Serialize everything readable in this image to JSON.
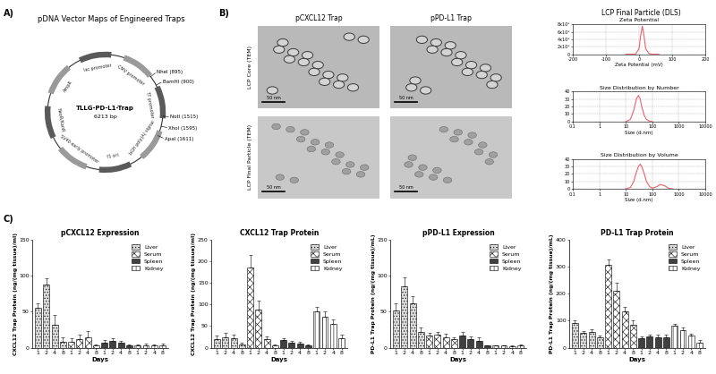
{
  "panels": {
    "labels": [
      "A)",
      "B)",
      "C)"
    ]
  },
  "plasmid_map": {
    "title": "pDNA Vector Maps of Engineered Traps",
    "name": "TLLG-PD-L1-Trap",
    "length": "6213 bp",
    "features": [
      "lac promoter",
      "CMV promoter",
      "T7 promoter",
      "bGH poly(A) signal",
      "f1 ori",
      "SV40 early promoter",
      "NeoR/KanR",
      "AmpR"
    ],
    "sites": [
      "NheI (895)",
      "BamHI (900)",
      "NotI (1515)",
      "XhoI (1595)",
      "ApaI (1611)"
    ]
  },
  "tem": {
    "columns": [
      "pCXCL12 Trap",
      "pPD-L1 Trap"
    ],
    "rows": [
      "LCP Core (TEM)",
      "LCP Final Particle (TEM)"
    ],
    "scale_bar": "50 nm"
  },
  "dls_title": "LCP Final Particle (DLS)",
  "chart_data": [
    {
      "type": "line",
      "title": "Zeta Potential",
      "xlabel": "Zeta Potential (mV)",
      "x": [
        -40,
        -20,
        -10,
        0,
        5,
        10,
        15,
        20,
        30,
        40,
        60
      ],
      "values": [
        0,
        0,
        10000,
        150000,
        500000,
        750000,
        500000,
        150000,
        20000,
        0,
        0
      ],
      "color": "#e8626b",
      "xlim": [
        -200,
        200
      ],
      "xticks": [
        -200,
        -100,
        0,
        100,
        200
      ],
      "ylim": [
        0,
        800000
      ],
      "yticks": [
        0,
        {
          "value": 200000,
          "label": "2x10⁵"
        },
        {
          "value": 400000,
          "label": "4x10⁵"
        },
        {
          "value": 600000,
          "label": "6x10⁵"
        },
        {
          "value": 800000,
          "label": "8x10⁵"
        }
      ],
      "grid": true
    },
    {
      "type": "line",
      "title": "Size Distribution by Number",
      "xlabel": "Size (d.nm)",
      "x": [
        10,
        15,
        20,
        25,
        30,
        35,
        40,
        50,
        60,
        80,
        100
      ],
      "values": [
        0,
        3,
        15,
        30,
        35,
        30,
        20,
        8,
        3,
        0.5,
        0
      ],
      "color": "#e8626b",
      "log": "x",
      "xlim": [
        0.1,
        10000
      ],
      "xticks": [
        0.1,
        1,
        10,
        100,
        1000,
        10000
      ],
      "ylim": [
        0,
        40
      ],
      "yticks": [
        0,
        10,
        20,
        30,
        40
      ],
      "grid": true
    },
    {
      "type": "line",
      "title": "Size Distribution by Volume",
      "xlabel": "Size (d.nm)",
      "x": [
        10,
        15,
        20,
        25,
        30,
        35,
        40,
        50,
        60,
        80,
        100,
        150,
        200,
        300,
        400,
        600
      ],
      "values": [
        0,
        2,
        10,
        22,
        30,
        33,
        30,
        20,
        10,
        3,
        1,
        3,
        6,
        4,
        1,
        0
      ],
      "color": "#e8626b",
      "log": "x",
      "xlim": [
        0.1,
        10000
      ],
      "xticks": [
        0.1,
        1,
        10,
        100,
        1000,
        10000
      ],
      "ylim": [
        0,
        40
      ],
      "yticks": [
        0,
        10,
        20,
        30,
        40
      ],
      "grid": true
    },
    {
      "type": "bar",
      "title": "pCXCL12 Expression",
      "xlabel": "Days",
      "ylabel": "CXCL12 Trap Protein (ng/(mg tissue)/ml)",
      "categories": [
        "1",
        "2",
        "4",
        "8",
        "1",
        "2",
        "4",
        "8",
        "1",
        "2",
        "4",
        "8",
        "1",
        "2",
        "4",
        "8"
      ],
      "series": [
        {
          "name": "Liver",
          "color": "#d9d9d9",
          "values": [
            55,
            88,
            32,
            8,
            null,
            null,
            null,
            null,
            null,
            null,
            null,
            null,
            null,
            null,
            null,
            null
          ],
          "errors": [
            6,
            8,
            14,
            6,
            null,
            null,
            null,
            null,
            null,
            null,
            null,
            null,
            null,
            null,
            null,
            null
          ]
        },
        {
          "name": "Serum",
          "color": "#ffffff",
          "values": [
            null,
            null,
            null,
            null,
            8,
            12,
            15,
            3,
            null,
            null,
            null,
            null,
            null,
            null,
            null,
            null
          ],
          "errors": [
            null,
            null,
            null,
            null,
            5,
            6,
            8,
            2,
            null,
            null,
            null,
            null,
            null,
            null,
            null,
            null
          ]
        },
        {
          "name": "Spleen",
          "color": "#404040",
          "values": [
            null,
            null,
            null,
            null,
            null,
            null,
            null,
            null,
            7,
            9,
            7,
            3,
            null,
            null,
            null,
            null
          ],
          "errors": [
            null,
            null,
            null,
            null,
            null,
            null,
            null,
            null,
            4,
            4,
            3,
            2,
            null,
            null,
            null,
            null
          ]
        },
        {
          "name": "Kidney",
          "color": "#ffffff",
          "values": [
            null,
            null,
            null,
            null,
            null,
            null,
            null,
            null,
            null,
            null,
            null,
            null,
            3,
            4,
            3,
            4
          ],
          "errors": [
            null,
            null,
            null,
            null,
            null,
            null,
            null,
            null,
            null,
            null,
            null,
            null,
            2,
            2,
            2,
            2
          ]
        }
      ],
      "ylim": [
        0,
        150
      ],
      "yticks": [
        0,
        50,
        100,
        150
      ],
      "legend": "upper right"
    },
    {
      "type": "bar",
      "title": "CXCL12 Trap Protein",
      "xlabel": "Days",
      "ylabel": "CXCL12 Trap Protein (ng/(mg tissue)/ml)",
      "categories": [
        "1",
        "2",
        "4",
        "8",
        "1",
        "2",
        "4",
        "8",
        "1",
        "2",
        "4",
        "8",
        "1",
        "2",
        "4",
        "8"
      ],
      "series": [
        {
          "name": "Liver",
          "color": "#d9d9d9",
          "values": [
            20,
            25,
            22,
            8,
            null,
            null,
            null,
            null,
            null,
            null,
            null,
            null,
            null,
            null,
            null,
            null
          ],
          "errors": [
            8,
            10,
            8,
            4,
            null,
            null,
            null,
            null,
            null,
            null,
            null,
            null,
            null,
            null,
            null,
            null
          ]
        },
        {
          "name": "Serum",
          "color": "#ffffff",
          "values": [
            null,
            null,
            null,
            null,
            185,
            88,
            20,
            5,
            null,
            null,
            null,
            null,
            null,
            null,
            null,
            null
          ],
          "errors": [
            null,
            null,
            null,
            null,
            28,
            20,
            6,
            2,
            null,
            null,
            null,
            null,
            null,
            null,
            null,
            null
          ]
        },
        {
          "name": "Spleen",
          "color": "#404040",
          "values": [
            null,
            null,
            null,
            null,
            null,
            null,
            null,
            null,
            18,
            12,
            10,
            5,
            null,
            null,
            null,
            null
          ],
          "errors": [
            null,
            null,
            null,
            null,
            null,
            null,
            null,
            null,
            4,
            3,
            3,
            2,
            null,
            null,
            null,
            null
          ]
        },
        {
          "name": "Kidney",
          "color": "#ffffff",
          "values": [
            null,
            null,
            null,
            null,
            null,
            null,
            null,
            null,
            null,
            null,
            null,
            null,
            85,
            72,
            55,
            22
          ],
          "errors": [
            null,
            null,
            null,
            null,
            null,
            null,
            null,
            null,
            null,
            null,
            null,
            null,
            10,
            12,
            10,
            8
          ]
        }
      ],
      "ylim": [
        0,
        250
      ],
      "yticks": [
        0,
        50,
        100,
        150,
        200,
        250
      ],
      "legend": "upper right"
    },
    {
      "type": "bar",
      "title": "pPD-L1 Expression",
      "xlabel": "Days",
      "ylabel": "PD-L1 Trap Protein (ng/(mg tissue)/mL)",
      "categories": [
        "1",
        "2",
        "4",
        "8",
        "1",
        "2",
        "4",
        "8",
        "1",
        "2",
        "4",
        "8",
        "1",
        "2",
        "4",
        "8"
      ],
      "series": [
        {
          "name": "Liver",
          "color": "#d9d9d9",
          "values": [
            52,
            85,
            62,
            22,
            null,
            null,
            null,
            null,
            null,
            null,
            null,
            null,
            null,
            null,
            null,
            null
          ],
          "errors": [
            10,
            12,
            10,
            6,
            null,
            null,
            null,
            null,
            null,
            null,
            null,
            null,
            null,
            null,
            null,
            null
          ]
        },
        {
          "name": "Serum",
          "color": "#ffffff",
          "values": [
            null,
            null,
            null,
            null,
            17,
            18,
            15,
            12,
            null,
            null,
            null,
            null,
            null,
            null,
            null,
            null
          ],
          "errors": [
            null,
            null,
            null,
            null,
            4,
            4,
            4,
            3,
            null,
            null,
            null,
            null,
            null,
            null,
            null,
            null
          ]
        },
        {
          "name": "Spleen",
          "color": "#404040",
          "values": [
            null,
            null,
            null,
            null,
            null,
            null,
            null,
            null,
            17,
            12,
            10,
            3,
            null,
            null,
            null,
            null
          ],
          "errors": [
            null,
            null,
            null,
            null,
            null,
            null,
            null,
            null,
            5,
            4,
            4,
            1,
            null,
            null,
            null,
            null
          ]
        },
        {
          "name": "Kidney",
          "color": "#ffffff",
          "values": [
            null,
            null,
            null,
            null,
            null,
            null,
            null,
            null,
            null,
            null,
            null,
            null,
            3,
            3,
            2,
            4
          ],
          "errors": [
            null,
            null,
            null,
            null,
            null,
            null,
            null,
            null,
            null,
            null,
            null,
            null,
            1,
            1,
            1,
            1
          ]
        }
      ],
      "ylim": [
        0,
        150
      ],
      "yticks": [
        0,
        50,
        100,
        150
      ],
      "legend": "upper right"
    },
    {
      "type": "bar",
      "title": "PD-L1 Trap Protein",
      "xlabel": "Days",
      "ylabel": "PD-L1 Trap Protein (ng/(mg tissue)/mL)",
      "categories": [
        "1",
        "2",
        "4",
        "8",
        "1",
        "2",
        "4",
        "8",
        "1",
        "2",
        "4",
        "8",
        "1",
        "2",
        "4",
        "8"
      ],
      "series": [
        {
          "name": "Liver",
          "color": "#d9d9d9",
          "values": [
            90,
            55,
            60,
            40,
            null,
            null,
            null,
            null,
            null,
            null,
            null,
            null,
            null,
            null,
            null,
            null
          ],
          "errors": [
            10,
            8,
            8,
            6,
            null,
            null,
            null,
            null,
            null,
            null,
            null,
            null,
            null,
            null,
            null,
            null
          ]
        },
        {
          "name": "Serum",
          "color": "#ffffff",
          "values": [
            null,
            null,
            null,
            null,
            305,
            210,
            135,
            85,
            null,
            null,
            null,
            null,
            null,
            null,
            null,
            null
          ],
          "errors": [
            null,
            null,
            null,
            null,
            20,
            30,
            15,
            15,
            null,
            null,
            null,
            null,
            null,
            null,
            null,
            null
          ]
        },
        {
          "name": "Spleen",
          "color": "#404040",
          "values": [
            null,
            null,
            null,
            null,
            null,
            null,
            null,
            null,
            35,
            42,
            40,
            40,
            null,
            null,
            null,
            null
          ],
          "errors": [
            null,
            null,
            null,
            null,
            null,
            null,
            null,
            null,
            8,
            8,
            8,
            8,
            null,
            null,
            null,
            null
          ]
        },
        {
          "name": "Kidney",
          "color": "#ffffff",
          "values": [
            null,
            null,
            null,
            null,
            null,
            null,
            null,
            null,
            null,
            null,
            null,
            null,
            80,
            65,
            45,
            20
          ],
          "errors": [
            null,
            null,
            null,
            null,
            null,
            null,
            null,
            null,
            null,
            null,
            null,
            null,
            8,
            10,
            8,
            8
          ]
        }
      ],
      "ylim": [
        0,
        400
      ],
      "yticks": [
        0,
        100,
        200,
        300,
        400
      ],
      "legend": "upper right"
    }
  ]
}
